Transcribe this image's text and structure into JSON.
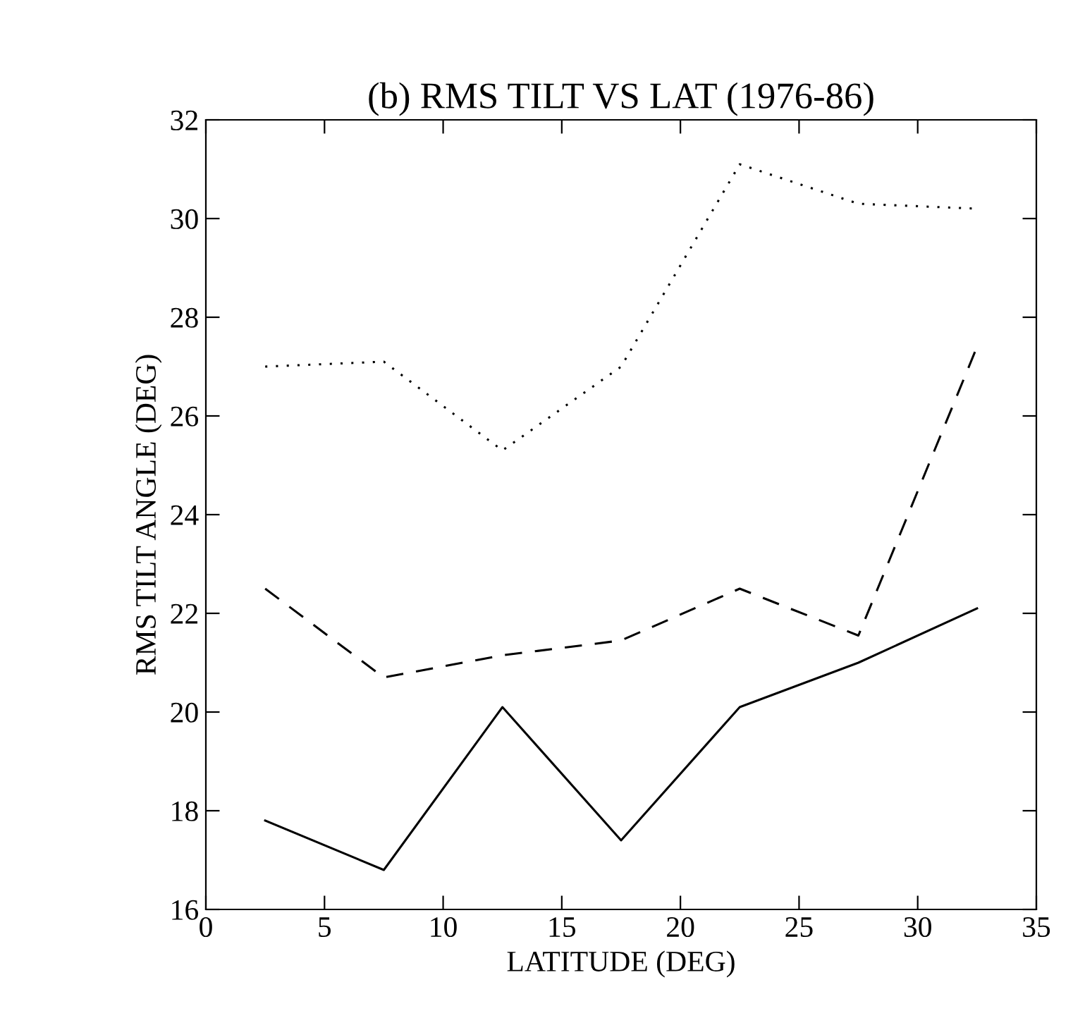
{
  "chart_data": {
    "type": "line",
    "title": "(b) RMS TILT VS LAT (1976-86)",
    "xlabel": "LATITUDE (DEG)",
    "ylabel": "RMS TILT ANGLE (DEG)",
    "x": [
      2.5,
      7.5,
      12.5,
      17.5,
      22.5,
      27.5,
      32.5
    ],
    "series": [
      {
        "color": "#000000",
        "line_style": "solid",
        "values": [
          17.8,
          16.8,
          20.1,
          17.4,
          20.1,
          21.0,
          22.1
        ]
      },
      {
        "color": "#000000",
        "line_style": "dashed",
        "values": [
          22.5,
          20.7,
          21.15,
          21.45,
          22.5,
          21.55,
          27.4
        ]
      },
      {
        "color": "#000000",
        "line_style": "dotted",
        "values": [
          27.0,
          27.1,
          25.3,
          27.0,
          31.1,
          30.3,
          30.2
        ]
      }
    ],
    "xlim": [
      0,
      35
    ],
    "xticks": [
      0,
      5,
      10,
      15,
      20,
      25,
      30,
      35
    ],
    "ylim": [
      16,
      32
    ],
    "yticks": [
      16,
      18,
      20,
      22,
      24,
      26,
      28,
      30,
      32
    ],
    "grid": false,
    "legend": false
  }
}
